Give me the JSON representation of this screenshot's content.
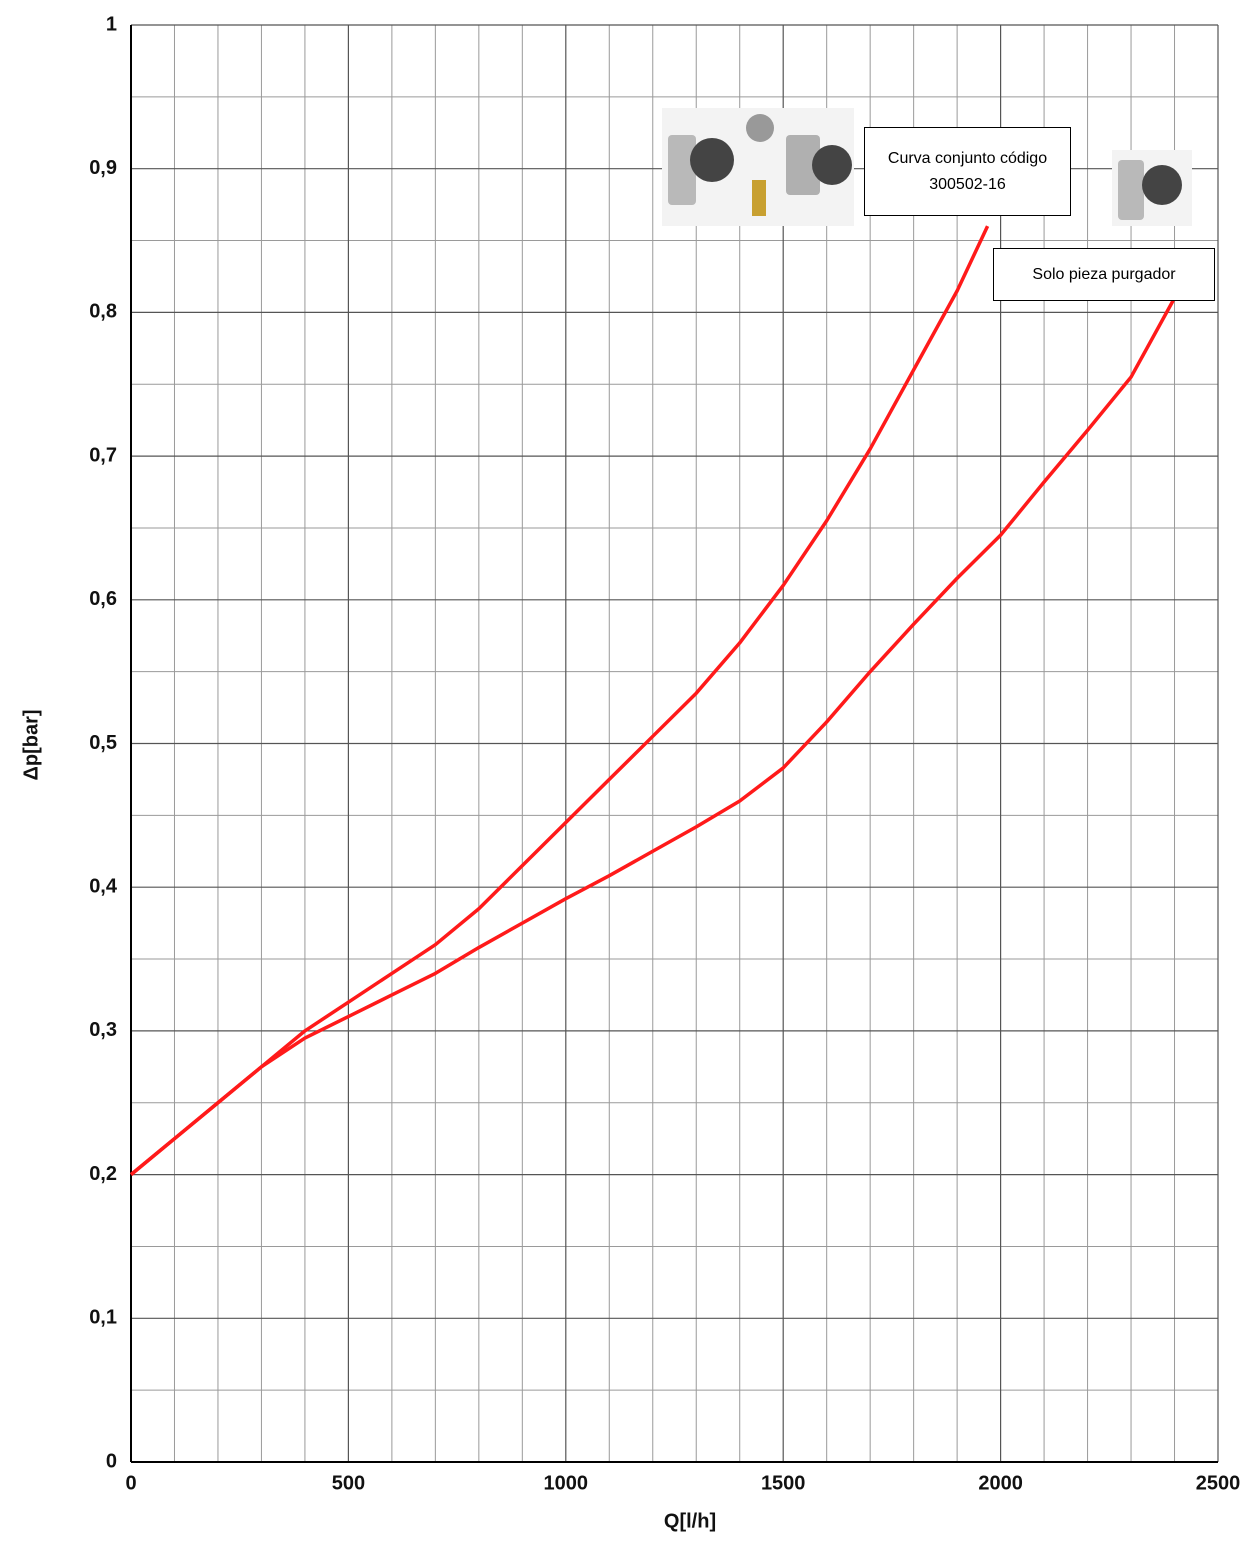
{
  "chart_data": {
    "type": "line",
    "x_label": "Q[l/h]",
    "y_label": "Δp[bar]",
    "xlim": [
      0,
      2500
    ],
    "xticks": [
      0,
      500,
      1000,
      1500,
      2000,
      2500
    ],
    "xminorticks": [
      100,
      200,
      300,
      400,
      600,
      700,
      800,
      900,
      1100,
      1200,
      1300,
      1400,
      1600,
      1700,
      1800,
      1900,
      2100,
      2200,
      2300,
      2400
    ],
    "ylim": [
      0,
      1
    ],
    "yticks": [
      0,
      {
        "value": 0.1,
        "label": "0,1"
      },
      {
        "value": 0.2,
        "label": "0,2"
      },
      {
        "value": 0.3,
        "label": "0,3"
      },
      {
        "value": 0.4,
        "label": "0,4"
      },
      {
        "value": 0.5,
        "label": "0,5"
      },
      {
        "value": 0.6,
        "label": "0,6"
      },
      {
        "value": 0.7,
        "label": "0,7"
      },
      {
        "value": 0.8,
        "label": "0,8"
      },
      {
        "value": 0.9,
        "label": "0,9"
      },
      1
    ],
    "yminorticks": [
      0.05,
      0.15,
      0.25,
      0.35,
      0.45,
      0.55,
      0.65,
      0.75,
      0.85,
      0.95
    ],
    "grid": true,
    "series": [
      {
        "name": "Curva conjunto código 300502-16",
        "color": "#ff1a1a",
        "x": [
          0,
          100,
          200,
          300,
          400,
          500,
          600,
          700,
          800,
          900,
          1000,
          1100,
          1200,
          1300,
          1400,
          1500,
          1600,
          1700,
          1800,
          1900,
          1970
        ],
        "values": [
          0.2,
          0.225,
          0.25,
          0.275,
          0.3,
          0.32,
          0.34,
          0.36,
          0.385,
          0.415,
          0.445,
          0.475,
          0.505,
          0.535,
          0.57,
          0.61,
          0.655,
          0.705,
          0.76,
          0.815,
          0.86
        ]
      },
      {
        "name": "Solo pieza purgador",
        "color": "#ff1a1a",
        "x": [
          0,
          100,
          200,
          300,
          400,
          500,
          600,
          700,
          800,
          900,
          1000,
          1100,
          1200,
          1300,
          1400,
          1500,
          1600,
          1700,
          1800,
          1900,
          2000,
          2100,
          2200,
          2300,
          2400
        ],
        "values": [
          0.2,
          0.225,
          0.25,
          0.275,
          0.295,
          0.31,
          0.325,
          0.34,
          0.358,
          0.375,
          0.392,
          0.408,
          0.425,
          0.442,
          0.46,
          0.483,
          0.515,
          0.55,
          0.583,
          0.615,
          0.645,
          0.682,
          0.718,
          0.755,
          0.81
        ]
      }
    ]
  }
}
